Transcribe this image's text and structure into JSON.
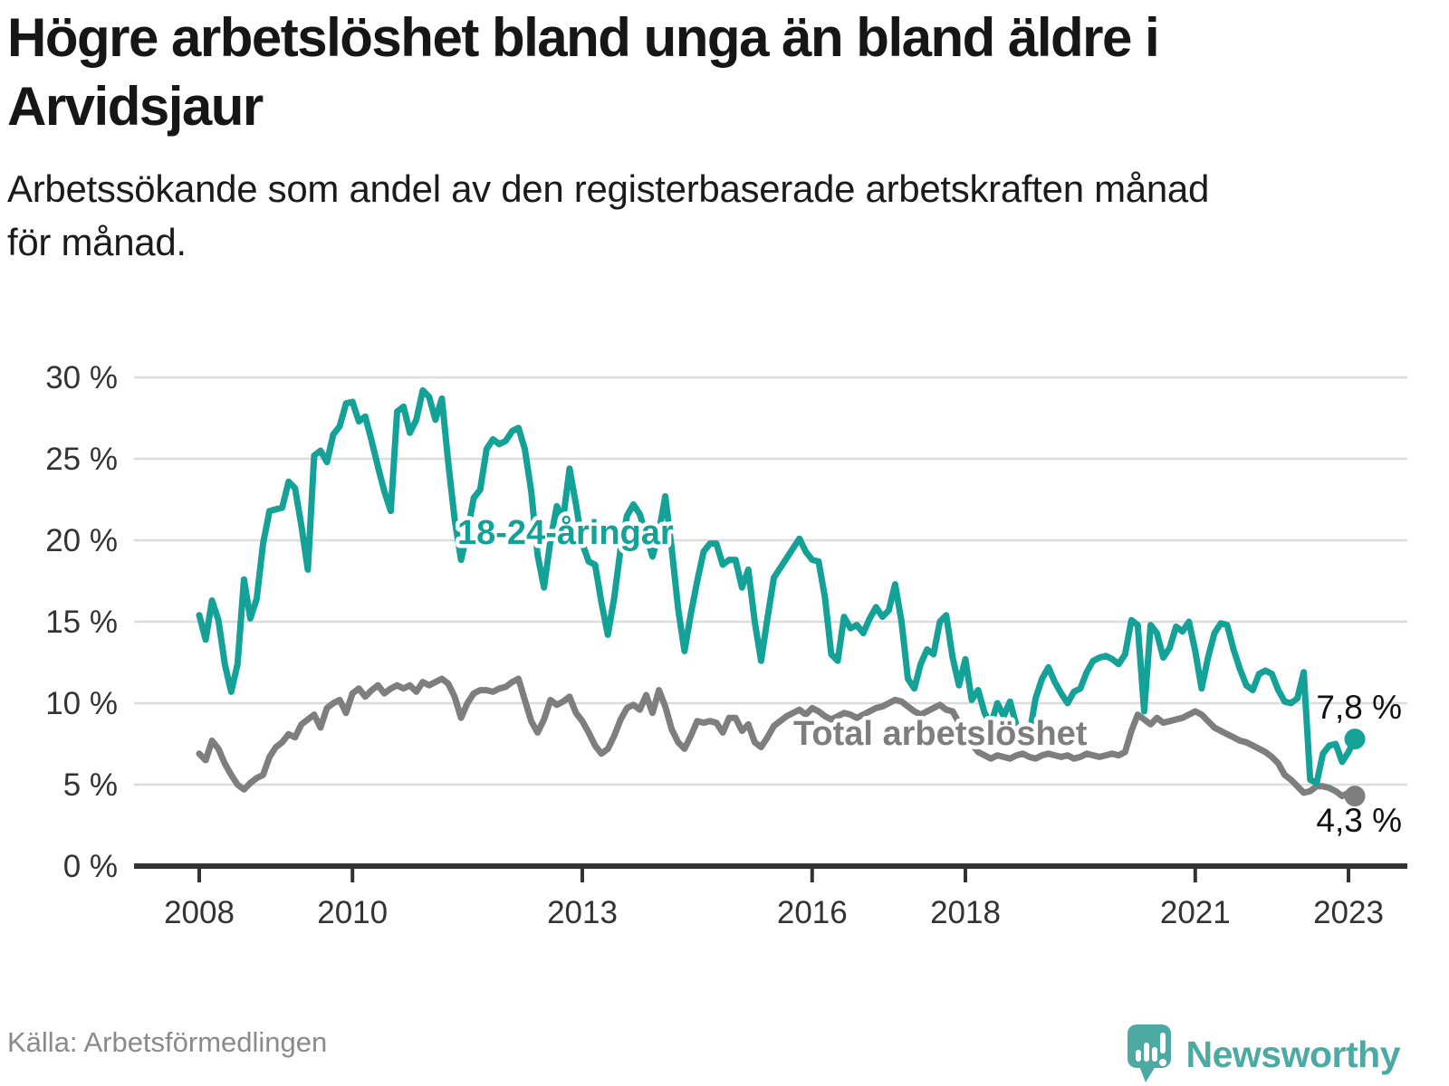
{
  "header": {
    "title_line1": "Högre arbetslöshet bland unga än bland äldre i",
    "title_line2": "Arvidsjaur",
    "subtitle_line1": "Arbetssökande som andel av den registerbaserade arbetskraften månad",
    "subtitle_line2": "för månad."
  },
  "footer": {
    "source": "Källa: Arbetsförmedlingen",
    "brand": "Newsworthy"
  },
  "icons": {
    "brand_icon": "newsworthy-bar-chart-pin-icon"
  },
  "colors": {
    "youth_line": "#13a198",
    "total_line": "#7e7e7e",
    "grid": "#dcdcdc",
    "axis": "#333333",
    "tick_label": "#333333",
    "end_label": "#111111",
    "logo": "#4caaa3",
    "source_text": "#8a8a8a"
  },
  "chart_data": {
    "type": "line",
    "title": "Högre arbetslöshet bland unga än bland äldre i Arvidsjaur",
    "subtitle": "Arbetssökande som andel av den registerbaserade arbetskraften månad för månad.",
    "unit": "%",
    "frequency": "monthly",
    "x_start": "2008-01",
    "x_end": "2023-02",
    "ylim": [
      0,
      30
    ],
    "grid": "horizontal",
    "legend": "inline-labels",
    "y_ticks": [
      {
        "v": 0,
        "label": "0 %"
      },
      {
        "v": 5,
        "label": "5 %"
      },
      {
        "v": 10,
        "label": "10 %"
      },
      {
        "v": 15,
        "label": "15 %"
      },
      {
        "v": 20,
        "label": "20 %"
      },
      {
        "v": 25,
        "label": "25 %"
      },
      {
        "v": 30,
        "label": "30 %"
      }
    ],
    "x_ticks": [
      2008,
      2010,
      2013,
      2016,
      2018,
      2021,
      2023
    ],
    "series": [
      {
        "name": "18-24-åringar",
        "color": "#13a198",
        "end_label": "7,8 %",
        "values": [
          15.4,
          13.9,
          16.3,
          15.1,
          12.4,
          10.7,
          12.4,
          17.6,
          15.2,
          16.4,
          19.8,
          21.8,
          21.9,
          22.0,
          23.6,
          23.2,
          20.9,
          18.2,
          25.2,
          25.5,
          24.8,
          26.5,
          27.0,
          28.4,
          28.5,
          27.3,
          27.6,
          26.1,
          24.5,
          23.0,
          21.8,
          27.9,
          28.2,
          26.6,
          27.4,
          29.2,
          28.8,
          27.4,
          28.7,
          24.8,
          21.3,
          18.8,
          20.5,
          22.6,
          23.1,
          25.6,
          26.2,
          25.9,
          26.1,
          26.7,
          26.9,
          25.6,
          23.0,
          19.1,
          17.1,
          20.0,
          22.1,
          21.3,
          24.4,
          22.2,
          19.8,
          18.7,
          18.5,
          16.2,
          14.2,
          16.5,
          19.5,
          21.5,
          22.2,
          21.6,
          20.3,
          19.0,
          20.5,
          22.7,
          19.5,
          15.8,
          13.2,
          15.5,
          17.5,
          19.3,
          19.8,
          19.8,
          18.5,
          18.8,
          18.8,
          17.1,
          18.2,
          15.0,
          12.6,
          15.2,
          17.7,
          18.3,
          18.9,
          19.5,
          20.1,
          19.3,
          18.8,
          18.7,
          16.5,
          13.0,
          12.6,
          15.3,
          14.6,
          14.8,
          14.3,
          15.2,
          15.9,
          15.3,
          15.7,
          17.3,
          15.0,
          11.5,
          10.9,
          12.4,
          13.3,
          13.0,
          15.0,
          15.4,
          12.8,
          11.1,
          12.7,
          10.2,
          10.8,
          9.4,
          8.7,
          10.0,
          9.2,
          10.1,
          8.6,
          8.2,
          8.0,
          10.3,
          11.5,
          12.2,
          11.3,
          10.6,
          10.0,
          10.7,
          10.9,
          11.9,
          12.6,
          12.8,
          12.9,
          12.7,
          12.4,
          13.0,
          15.1,
          14.8,
          9.5,
          14.8,
          14.3,
          12.8,
          13.4,
          14.7,
          14.4,
          15.0,
          13.2,
          10.9,
          12.8,
          14.3,
          14.9,
          14.8,
          13.3,
          12.1,
          11.1,
          10.8,
          11.8,
          12.0,
          11.8,
          10.8,
          10.1,
          10.0,
          10.3,
          11.9,
          5.3,
          5.1,
          6.9,
          7.4,
          7.5,
          6.4,
          7.0,
          7.8
        ]
      },
      {
        "name": "Total arbetslöshet",
        "color": "#7e7e7e",
        "end_label": "4,3 %",
        "values": [
          6.9,
          6.5,
          7.7,
          7.2,
          6.3,
          5.6,
          5.0,
          4.7,
          5.1,
          5.4,
          5.6,
          6.7,
          7.3,
          7.6,
          8.1,
          7.9,
          8.7,
          9.0,
          9.3,
          8.5,
          9.7,
          10.0,
          10.2,
          9.4,
          10.6,
          10.9,
          10.4,
          10.8,
          11.1,
          10.6,
          10.9,
          11.1,
          10.9,
          11.1,
          10.7,
          11.3,
          11.1,
          11.3,
          11.5,
          11.2,
          10.4,
          9.1,
          10.0,
          10.6,
          10.8,
          10.8,
          10.7,
          10.9,
          11.0,
          11.3,
          11.5,
          10.2,
          8.9,
          8.2,
          9.0,
          10.2,
          9.9,
          10.1,
          10.4,
          9.4,
          8.9,
          8.2,
          7.4,
          6.9,
          7.2,
          8.0,
          9.0,
          9.7,
          9.9,
          9.6,
          10.5,
          9.4,
          10.8,
          9.8,
          8.4,
          7.6,
          7.2,
          8.0,
          8.9,
          8.8,
          8.9,
          8.8,
          8.2,
          9.1,
          9.1,
          8.3,
          8.7,
          7.6,
          7.3,
          7.9,
          8.6,
          8.9,
          9.2,
          9.4,
          9.6,
          9.3,
          9.7,
          9.5,
          9.2,
          9.0,
          9.2,
          9.4,
          9.3,
          9.1,
          9.3,
          9.5,
          9.7,
          9.8,
          10.0,
          10.2,
          10.1,
          9.8,
          9.5,
          9.3,
          9.5,
          9.7,
          9.9,
          9.6,
          9.5,
          8.8,
          8.2,
          7.5,
          7.0,
          6.8,
          6.6,
          6.8,
          6.7,
          6.6,
          6.8,
          6.9,
          6.7,
          6.6,
          6.8,
          6.9,
          6.8,
          6.7,
          6.8,
          6.6,
          6.7,
          6.9,
          6.8,
          6.7,
          6.8,
          6.9,
          6.8,
          7.0,
          8.3,
          9.3,
          9.0,
          8.7,
          9.1,
          8.8,
          8.9,
          9.0,
          9.1,
          9.3,
          9.5,
          9.3,
          8.9,
          8.5,
          8.3,
          8.1,
          7.9,
          7.7,
          7.6,
          7.4,
          7.2,
          7.0,
          6.7,
          6.3,
          5.6,
          5.3,
          4.9,
          4.5,
          4.6,
          4.9,
          4.9,
          4.8,
          4.6,
          4.3,
          4.5,
          4.3
        ]
      }
    ]
  }
}
